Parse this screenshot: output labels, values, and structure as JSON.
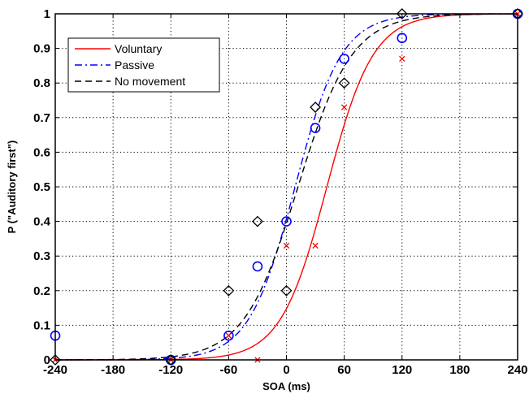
{
  "chart_data": {
    "type": "line",
    "title": "",
    "xlabel": "SOA (ms)",
    "ylabel": "P (\"Auditory first\")",
    "xlim": [
      -240,
      240
    ],
    "ylim": [
      0,
      1
    ],
    "xticks": [
      -240,
      -180,
      -120,
      -60,
      0,
      60,
      120,
      180,
      240
    ],
    "yticks": [
      0,
      0.1,
      0.2,
      0.3,
      0.4,
      0.5,
      0.6,
      0.7,
      0.8,
      0.9,
      1
    ],
    "grid": true,
    "legend_position": "top-left",
    "series": [
      {
        "name": "Voluntary",
        "color": "#ff0000",
        "line_style": "solid",
        "marker": "x",
        "curve": {
          "pse": 42,
          "slope": 24
        },
        "points": {
          "x": [
            -240,
            -120,
            -60,
            -30,
            0,
            30,
            60,
            120,
            240
          ],
          "y": [
            0,
            0,
            0.07,
            0,
            0.33,
            0.33,
            0.73,
            0.87,
            1
          ]
        }
      },
      {
        "name": "Passive",
        "color": "#0000ff",
        "line_style": "dash-dot",
        "marker": "circle",
        "curve": {
          "pse": 9,
          "slope": 24
        },
        "points": {
          "x": [
            -240,
            -120,
            -60,
            -30,
            0,
            30,
            60,
            120,
            240
          ],
          "y": [
            0.07,
            0,
            0.07,
            0.27,
            0.4,
            0.67,
            0.87,
            0.93,
            1
          ]
        }
      },
      {
        "name": "No movement",
        "color": "#000000",
        "line_style": "dashed",
        "marker": "diamond",
        "curve": {
          "pse": 12,
          "slope": 28
        },
        "points": {
          "x": [
            -240,
            -120,
            -60,
            -30,
            0,
            30,
            60,
            120,
            240
          ],
          "y": [
            0,
            0,
            0.2,
            0.4,
            0.2,
            0.73,
            0.8,
            1,
            1
          ]
        }
      }
    ]
  }
}
